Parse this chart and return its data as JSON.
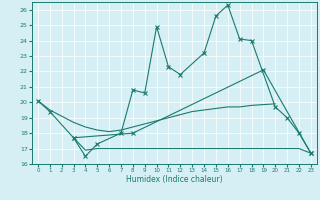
{
  "xlabel": "Humidex (Indice chaleur)",
  "line1_xy": [
    [
      0,
      20.1
    ],
    [
      1,
      19.4
    ],
    [
      3,
      17.7
    ],
    [
      4,
      16.5
    ],
    [
      5,
      17.3
    ],
    [
      7,
      18.0
    ],
    [
      8,
      20.8
    ],
    [
      9,
      20.6
    ],
    [
      10,
      24.9
    ],
    [
      11,
      22.3
    ],
    [
      12,
      21.8
    ],
    [
      14,
      23.2
    ],
    [
      15,
      25.6
    ],
    [
      16,
      26.3
    ],
    [
      17,
      24.1
    ],
    [
      18,
      24.0
    ],
    [
      20,
      19.7
    ],
    [
      21,
      19.0
    ],
    [
      22,
      18.0
    ],
    [
      23,
      16.7
    ]
  ],
  "line2_xy": [
    [
      3,
      17.7
    ],
    [
      8,
      18.0
    ],
    [
      19,
      22.1
    ],
    [
      23,
      16.7
    ]
  ],
  "line3_xy": [
    [
      0,
      20.1
    ],
    [
      1,
      19.5
    ],
    [
      2,
      19.1
    ],
    [
      3,
      18.7
    ],
    [
      4,
      18.4
    ],
    [
      5,
      18.2
    ],
    [
      6,
      18.1
    ],
    [
      7,
      18.2
    ],
    [
      8,
      18.4
    ],
    [
      9,
      18.6
    ],
    [
      10,
      18.8
    ],
    [
      11,
      19.0
    ],
    [
      12,
      19.2
    ],
    [
      13,
      19.4
    ],
    [
      14,
      19.5
    ],
    [
      15,
      19.6
    ],
    [
      16,
      19.7
    ],
    [
      17,
      19.7
    ],
    [
      18,
      19.8
    ],
    [
      19,
      19.85
    ],
    [
      20,
      19.9
    ]
  ],
  "line4_xy": [
    [
      3,
      17.7
    ],
    [
      4,
      16.9
    ],
    [
      5,
      17.0
    ],
    [
      6,
      17.0
    ],
    [
      7,
      17.0
    ],
    [
      8,
      17.0
    ],
    [
      9,
      17.0
    ],
    [
      10,
      17.0
    ],
    [
      11,
      17.0
    ],
    [
      12,
      17.0
    ],
    [
      13,
      17.0
    ],
    [
      14,
      17.0
    ],
    [
      15,
      17.0
    ],
    [
      16,
      17.0
    ],
    [
      17,
      17.0
    ],
    [
      18,
      17.0
    ],
    [
      19,
      17.0
    ],
    [
      20,
      17.0
    ],
    [
      21,
      17.0
    ],
    [
      22,
      17.0
    ],
    [
      23,
      16.7
    ]
  ],
  "ylim": [
    16,
    26.5
  ],
  "yticks": [
    16,
    17,
    18,
    19,
    20,
    21,
    22,
    23,
    24,
    25,
    26
  ],
  "xticks": [
    0,
    1,
    2,
    3,
    4,
    5,
    6,
    7,
    8,
    9,
    10,
    11,
    12,
    13,
    14,
    15,
    16,
    17,
    18,
    19,
    20,
    21,
    22,
    23
  ],
  "color": "#1a7a6e",
  "bg_color": "#d6eff5",
  "grid_color": "#ffffff",
  "linewidth": 0.8,
  "markersize": 2.5
}
